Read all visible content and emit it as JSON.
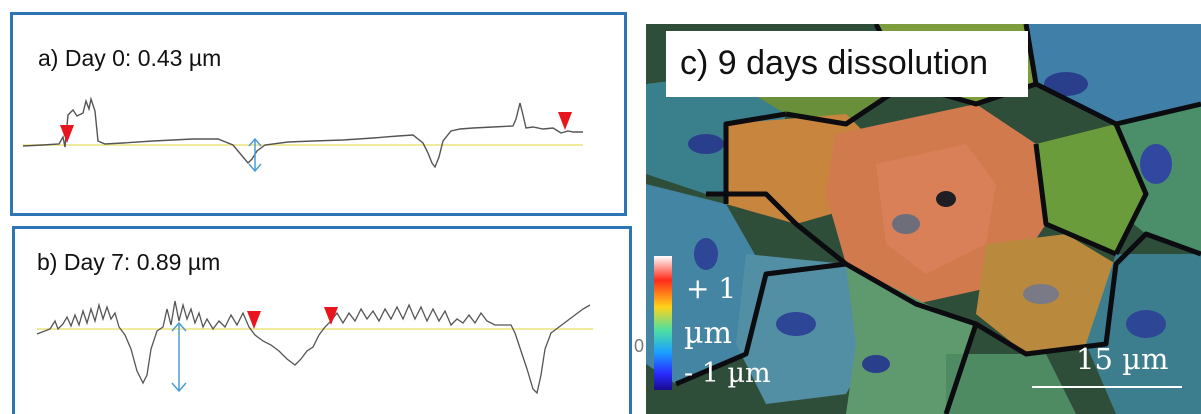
{
  "panels": {
    "a": {
      "label": "a) Day 0: 0.43 µm"
    },
    "b": {
      "label": "b) Day 7: 0.89 µm"
    },
    "c": {
      "title": "c) 9 days dissolution",
      "legend": {
        "max_label": "+ 1",
        "unit_label": "µm",
        "min_label": "- 1 µm"
      },
      "scale_bar_label": "15 µm"
    }
  },
  "stray_text": "0",
  "colors": {
    "panel_border": "#2e75b6",
    "reference_line": "#f0ea9c",
    "profile_line": "#555555",
    "marker": "#e8141e",
    "depth_arrow": "#4a9cd6"
  },
  "icons": [
    "red-triangle-marker",
    "double-headed-depth-arrow",
    "color-scale-bar"
  ]
}
